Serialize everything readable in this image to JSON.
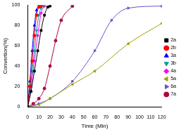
{
  "chart_data": {
    "type": "line",
    "x_label": "Time (Min)",
    "y_label": "Convertion(%)",
    "xlim": [
      0,
      120
    ],
    "xticks": [
      0,
      10,
      20,
      30,
      40,
      50,
      60,
      70,
      80,
      90,
      100,
      110,
      120
    ],
    "ylim": [
      0,
      100
    ],
    "yticks": [
      0,
      20,
      40,
      60,
      80,
      100
    ],
    "grid": false,
    "legend": "right",
    "series": [
      {
        "name": "2a",
        "color": "#000000",
        "marker": "square",
        "x": [
          0,
          3,
          6,
          9,
          12,
          15,
          18,
          20
        ],
        "values": [
          0,
          15,
          35,
          55,
          75,
          90,
          98,
          99
        ]
      },
      {
        "name": "2b",
        "color": "#ff0000",
        "marker": "circle",
        "x": [
          0,
          2,
          4,
          6,
          8,
          10,
          12
        ],
        "values": [
          0,
          20,
          45,
          70,
          90,
          98,
          99
        ]
      },
      {
        "name": "3a",
        "color": "#0000ff",
        "marker": "triangle",
        "x": [
          0,
          2,
          4,
          6,
          8,
          10
        ],
        "values": [
          0,
          25,
          55,
          80,
          95,
          99
        ]
      },
      {
        "name": "3b",
        "color": "#00a0a0",
        "marker": "triangle_down",
        "x": [
          0,
          2,
          4,
          6,
          8,
          10,
          12,
          14
        ],
        "values": [
          0,
          15,
          35,
          55,
          75,
          90,
          97,
          99
        ]
      },
      {
        "name": "4a",
        "color": "#ff00ff",
        "marker": "diamond",
        "x": [
          0,
          3,
          6,
          9,
          12,
          15
        ],
        "values": [
          0,
          20,
          45,
          70,
          92,
          99
        ]
      },
      {
        "name": "5a",
        "color": "#a0a000",
        "marker": "triangle_left",
        "x": [
          0,
          10,
          20,
          40,
          60,
          90,
          120
        ],
        "values": [
          0,
          2,
          8,
          22,
          35,
          62,
          82
        ]
      },
      {
        "name": "6a",
        "color": "#6a50d0",
        "marker": "triangle_right",
        "x": [
          0,
          10,
          20,
          40,
          60,
          75,
          90,
          120
        ],
        "values": [
          0,
          3,
          8,
          25,
          55,
          85,
          97,
          99
        ]
      },
      {
        "name": "7a",
        "color": "#b00040",
        "marker": "hexagon",
        "x": [
          0,
          5,
          10,
          15,
          20,
          25,
          30,
          40
        ],
        "values": [
          0,
          3,
          8,
          18,
          40,
          65,
          85,
          99
        ]
      }
    ]
  }
}
